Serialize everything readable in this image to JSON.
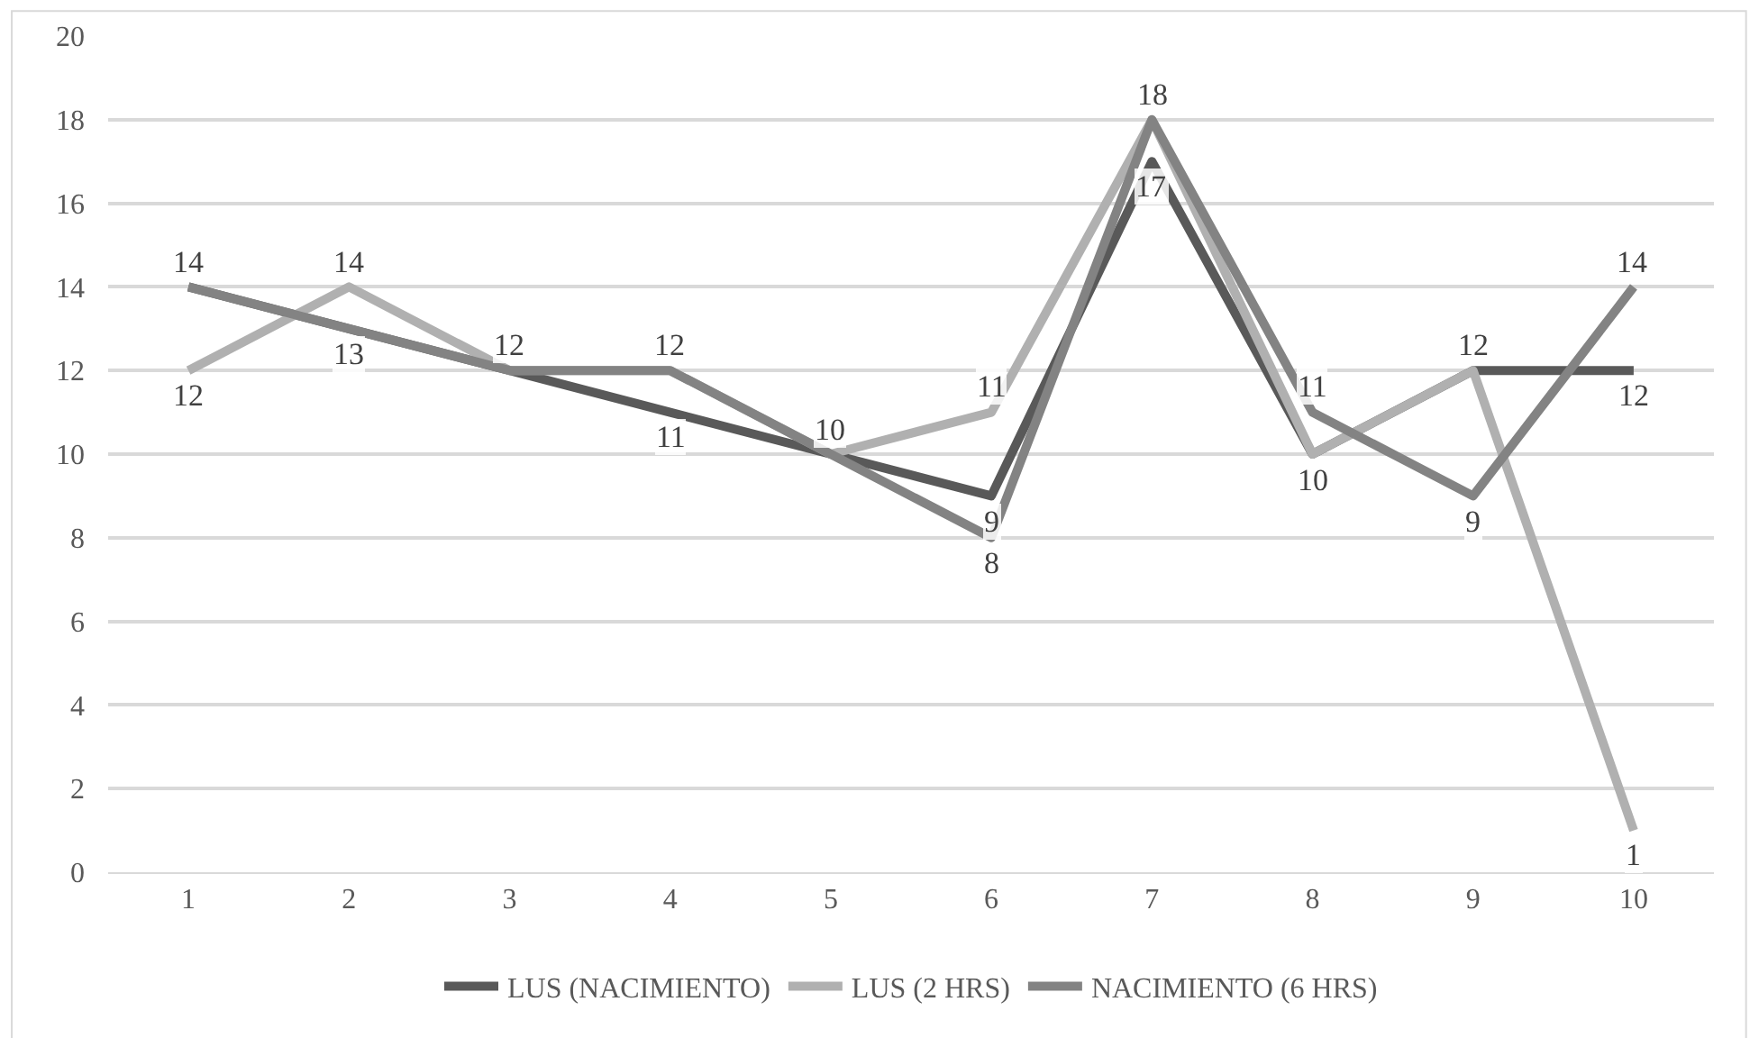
{
  "chart_data": {
    "type": "line",
    "categories": [
      "1",
      "2",
      "3",
      "4",
      "5",
      "6",
      "7",
      "8",
      "9",
      "10"
    ],
    "series": [
      {
        "name": "LUS (NACIMIENTO)",
        "color": "#595959",
        "values": [
          14,
          13,
          12,
          11,
          10,
          9,
          17,
          10,
          12,
          12
        ],
        "value_labels": [
          null,
          null,
          "12",
          "11",
          "10",
          "9",
          "17",
          "10",
          "12",
          "12"
        ]
      },
      {
        "name": "LUS (2 HRS)",
        "color": "#b0b0b0",
        "values": [
          12,
          14,
          12,
          12,
          10,
          11,
          18,
          10,
          12,
          1
        ],
        "value_labels": [
          "12",
          "14",
          null,
          null,
          null,
          "11",
          "18",
          null,
          null,
          "1"
        ]
      },
      {
        "name": "NACIMIENTO (6 HRS)",
        "color": "#838383",
        "values": [
          14,
          13,
          12,
          12,
          10,
          8,
          18,
          11,
          9,
          14
        ],
        "value_labels": [
          "14",
          "13",
          null,
          "12",
          null,
          "8",
          null,
          "11",
          "9",
          "14"
        ]
      }
    ],
    "ylim": [
      0,
      20
    ],
    "yticks": [
      0,
      2,
      4,
      6,
      8,
      10,
      12,
      14,
      16,
      18,
      20
    ],
    "grid": "y",
    "legend": "bottom",
    "marker": "none",
    "line_style": "solid"
  }
}
